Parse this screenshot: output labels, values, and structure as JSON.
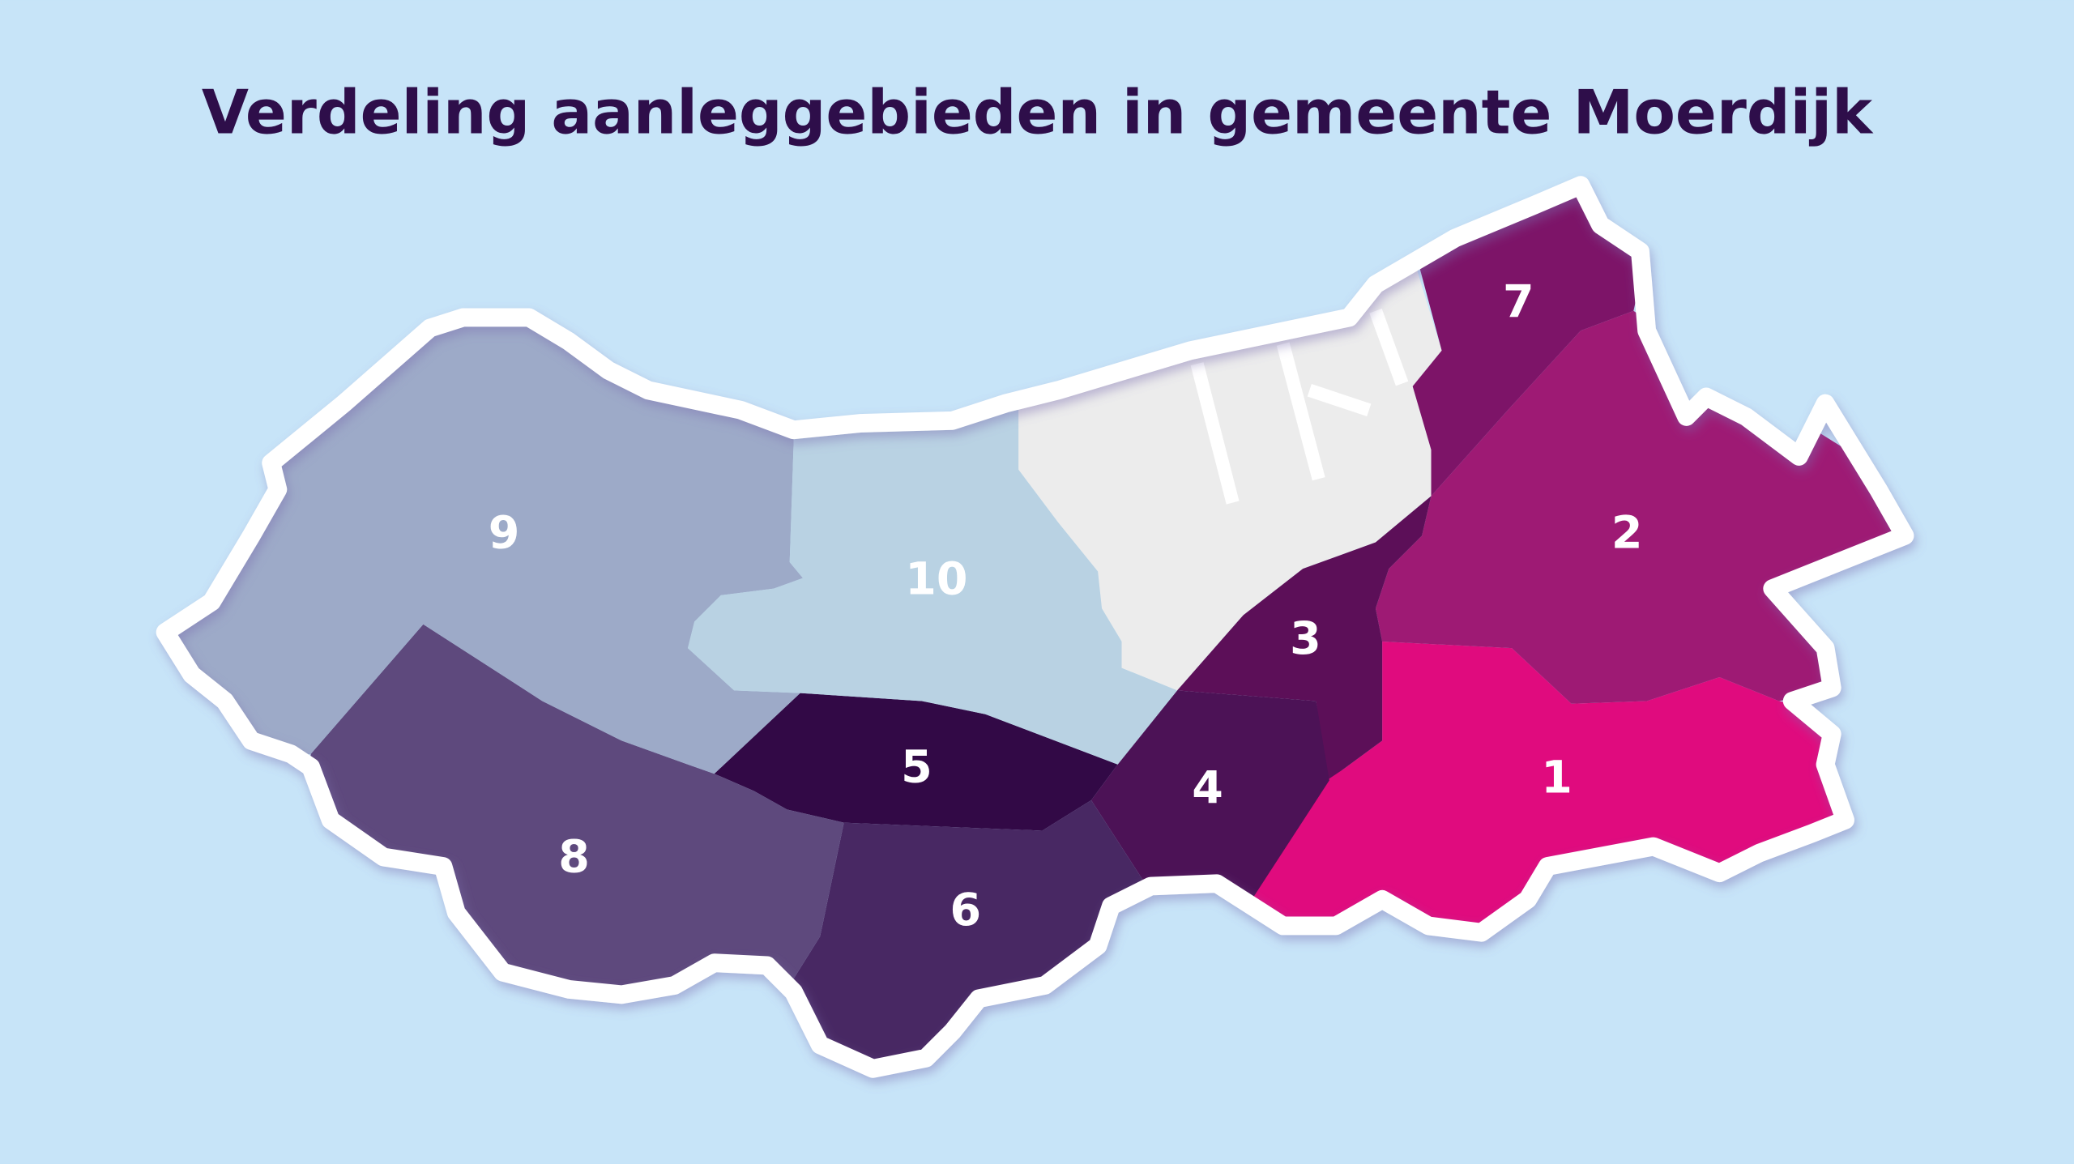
{
  "title": "Verdeling aanleggebieden in gemeente Moerdijk",
  "regions": [
    {
      "label": "1"
    },
    {
      "label": "2"
    },
    {
      "label": "3"
    },
    {
      "label": "4"
    },
    {
      "label": "5"
    },
    {
      "label": "6"
    },
    {
      "label": "7"
    },
    {
      "label": "8"
    },
    {
      "label": "9"
    },
    {
      "label": "10"
    }
  ]
}
